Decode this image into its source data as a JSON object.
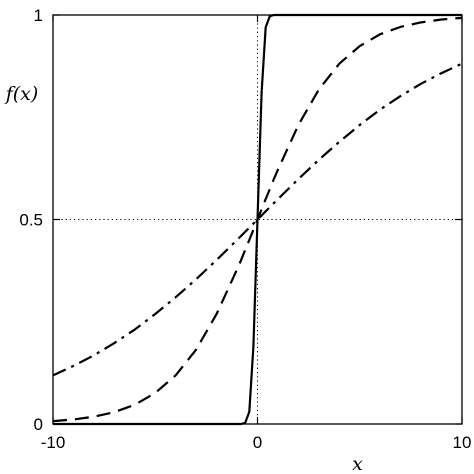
{
  "chart_data": {
    "type": "line",
    "title": "",
    "xlabel": "x",
    "ylabel": "f(x)",
    "xlim": [
      -10,
      10
    ],
    "ylim": [
      0,
      1
    ],
    "x_ticks": [
      {
        "value": -10,
        "label": "-10"
      },
      {
        "value": 0,
        "label": "0"
      },
      {
        "value": 10,
        "label": "10"
      }
    ],
    "y_ticks": [
      {
        "value": 0,
        "label": "0"
      },
      {
        "value": 0.5,
        "label": "0.5"
      },
      {
        "value": 1,
        "label": "1"
      }
    ],
    "grid": false,
    "legend": "none",
    "reference_lines": [
      {
        "orientation": "horizontal",
        "value": 0.5,
        "style": "dotted"
      },
      {
        "orientation": "vertical",
        "value": 0,
        "style": "dotted"
      }
    ],
    "x": [
      -10,
      -9,
      -8,
      -7,
      -6,
      -5,
      -4,
      -3,
      -2,
      -1,
      -0.8,
      -0.6,
      -0.4,
      -0.2,
      0,
      0.2,
      0.4,
      0.6,
      0.8,
      1,
      2,
      3,
      4,
      5,
      6,
      7,
      8,
      9,
      10
    ],
    "series": [
      {
        "style": "solid",
        "values": [
          0,
          0,
          0,
          0,
          0,
          0,
          0,
          0,
          0,
          0,
          0,
          0.003,
          0.03,
          0.19,
          0.5,
          0.81,
          0.97,
          0.997,
          1,
          1,
          1,
          1,
          1,
          1,
          1,
          1,
          1,
          1,
          1
        ]
      },
      {
        "style": "dashed",
        "values": [
          0.007,
          0.011,
          0.018,
          0.029,
          0.047,
          0.076,
          0.119,
          0.182,
          0.269,
          0.378,
          0.401,
          0.426,
          0.45,
          0.475,
          0.5,
          0.525,
          0.55,
          0.574,
          0.599,
          0.622,
          0.731,
          0.818,
          0.881,
          0.924,
          0.953,
          0.971,
          0.982,
          0.989,
          0.993
        ]
      },
      {
        "style": "dash-dot",
        "values": [
          0.119,
          0.142,
          0.168,
          0.198,
          0.231,
          0.269,
          0.31,
          0.354,
          0.401,
          0.45,
          0.46,
          0.47,
          0.48,
          0.49,
          0.5,
          0.51,
          0.52,
          0.53,
          0.54,
          0.55,
          0.599,
          0.646,
          0.69,
          0.731,
          0.769,
          0.802,
          0.832,
          0.858,
          0.881
        ]
      }
    ]
  }
}
